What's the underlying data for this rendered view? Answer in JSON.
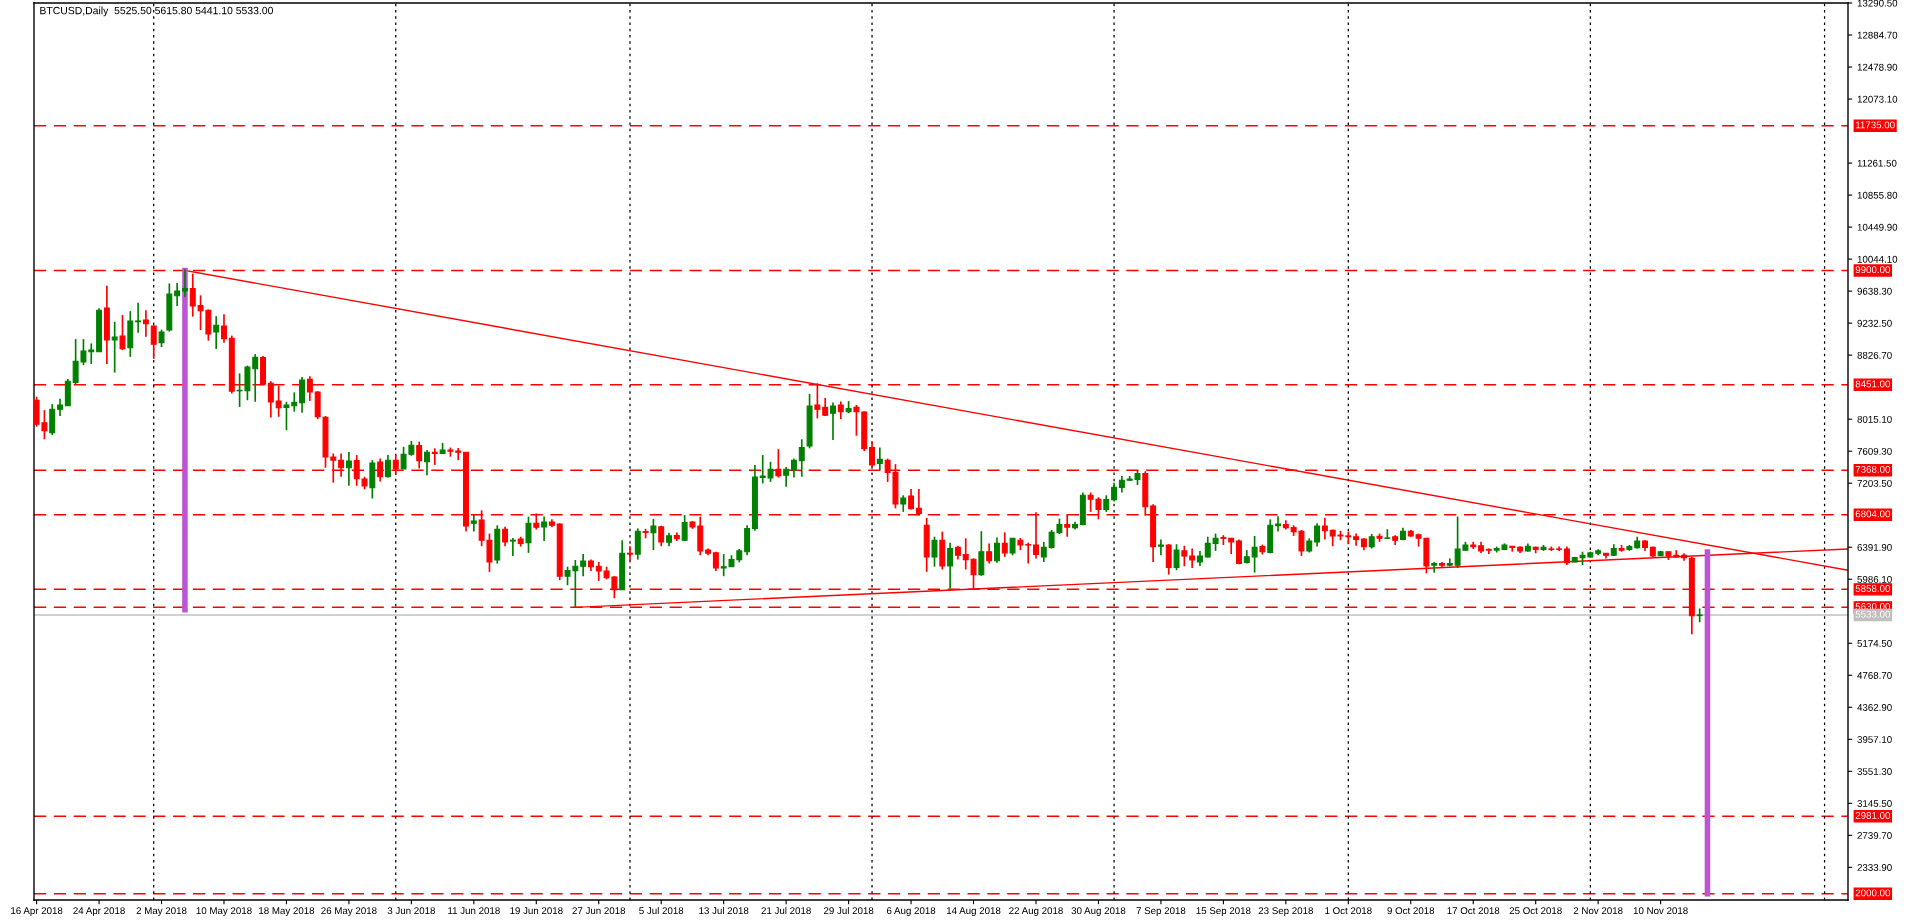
{
  "chart_data": {
    "type": "candlestick",
    "title": "BTCUSD,Daily  5525.50 5615.80 5441.10 5533.00",
    "colors": [
      "#ff0000",
      "#ff0000",
      "#008000",
      "#008000",
      "#008000",
      "#008000",
      "#008000",
      "#008000",
      "#008000",
      "#ff0000",
      "#008000",
      "#ff0000",
      "#008000",
      "#008000",
      "#ff0000",
      "#ff0000",
      "#008000",
      "#008000",
      "#008000",
      "#008000",
      "#ff0000",
      "#ff0000",
      "#ff0000",
      "#008000",
      "#ff0000",
      "#ff0000",
      "#008000",
      "#008000",
      "#008000",
      "#ff0000",
      "#ff0000",
      "#ff0000",
      "#008000",
      "#008000",
      "#008000",
      "#ff0000",
      "#ff0000",
      "#ff0000",
      "#ff0000",
      "#ff0000",
      "#008000",
      "#ff0000",
      "#ff0000",
      "#008000",
      "#ff0000",
      "#008000",
      "#ff0000",
      "#008000",
      "#008000",
      "#ff0000",
      "#008000",
      "#ff0000",
      "#008000",
      "#ff0000",
      "#ff0000",
      "#ff0000",
      "#008000",
      "#ff0000",
      "#ff0000",
      "#008000",
      "#ff0000",
      "#008000",
      "#ff0000",
      "#008000",
      "#ff0000",
      "#008000",
      "#ff0000",
      "#ff0000",
      "#008000",
      "#008000",
      "#008000",
      "#ff0000",
      "#ff0000",
      "#ff0000",
      "#ff0000",
      "#008000",
      "#ff0000",
      "#008000",
      "#ff0000",
      "#008000",
      "#ff0000",
      "#008000",
      "#ff0000",
      "#008000",
      "#ff0000",
      "#ff0000",
      "#ff0000",
      "#ff0000",
      "#008000",
      "#008000",
      "#008000",
      "#008000",
      "#008000",
      "#008000",
      "#008000",
      "#ff0000",
      "#008000",
      "#008000",
      "#008000",
      "#008000",
      "#ff0000",
      "#ff0000",
      "#008000",
      "#ff0000",
      "#008000",
      "#ff0000",
      "#ff0000",
      "#ff0000",
      "#008000",
      "#ff0000",
      "#ff0000",
      "#008000",
      "#ff0000",
      "#ff0000",
      "#ff0000",
      "#008000",
      "#ff0000",
      "#008000",
      "#ff0000",
      "#ff0000",
      "#ff0000",
      "#008000",
      "#ff0000",
      "#008000",
      "#ff0000",
      "#008000",
      "#ff0000",
      "#ff0000",
      "#ff0000",
      "#008000",
      "#008000",
      "#008000",
      "#ff0000",
      "#008000",
      "#008000",
      "#ff0000",
      "#ff0000",
      "#008000",
      "#008000",
      "#008000",
      "#008000",
      "#008000",
      "#ff0000",
      "#ff0000",
      "#008000",
      "#ff0000",
      "#008000",
      "#ff0000",
      "#ff0000",
      "#008000",
      "#008000",
      "#008000",
      "#ff0000",
      "#ff0000",
      "#ff0000",
      "#008000",
      "#008000",
      "#ff0000",
      "#008000",
      "#008000",
      "#ff0000",
      "#ff0000",
      "#ff0000",
      "#008000",
      "#008000",
      "#ff0000",
      "#ff0000",
      "#ff0000",
      "#ff0000",
      "#ff0000",
      "#ff0000",
      "#008000",
      "#ff0000",
      "#008000",
      "#ff0000",
      "#008000",
      "#ff0000",
      "#ff0000",
      "#ff0000",
      "#008000",
      "#ff0000",
      "#008000",
      "#008000",
      "#008000",
      "#ff0000",
      "#ff0000",
      "#ff0000",
      "#008000",
      "#008000",
      "#ff0000",
      "#ff0000",
      "#008000",
      "#ff0000",
      "#008000",
      "#ff0000",
      "#ff0000",
      "#ff0000",
      "#008000",
      "#008000",
      "#008000",
      "#008000",
      "#ff0000",
      "#008000",
      "#ff0000",
      "#008000",
      "#008000",
      "#ff0000",
      "#ff0000",
      "#008000",
      "#ff0000",
      "#ff0000",
      "#ff0000",
      "#ff0000",
      "#008000"
    ],
    "x": [
      "2018-04-16",
      "2018-04-17",
      "2018-04-18",
      "2018-04-19",
      "2018-04-20",
      "2018-04-21",
      "2018-04-22",
      "2018-04-23",
      "2018-04-24",
      "2018-04-25",
      "2018-04-26",
      "2018-04-27",
      "2018-04-28",
      "2018-04-29",
      "2018-04-30",
      "2018-05-01",
      "2018-05-02",
      "2018-05-03",
      "2018-05-04",
      "2018-05-05",
      "2018-05-06",
      "2018-05-07",
      "2018-05-08",
      "2018-05-09",
      "2018-05-10",
      "2018-05-11",
      "2018-05-12",
      "2018-05-13",
      "2018-05-14",
      "2018-05-15",
      "2018-05-16",
      "2018-05-17",
      "2018-05-18",
      "2018-05-19",
      "2018-05-20",
      "2018-05-21",
      "2018-05-22",
      "2018-05-23",
      "2018-05-24",
      "2018-05-25",
      "2018-05-26",
      "2018-05-27",
      "2018-05-28",
      "2018-05-29",
      "2018-05-30",
      "2018-05-31",
      "2018-06-01",
      "2018-06-02",
      "2018-06-03",
      "2018-06-04",
      "2018-06-05",
      "2018-06-06",
      "2018-06-07",
      "2018-06-08",
      "2018-06-09",
      "2018-06-10",
      "2018-06-11",
      "2018-06-12",
      "2018-06-13",
      "2018-06-14",
      "2018-06-15",
      "2018-06-16",
      "2018-06-17",
      "2018-06-18",
      "2018-06-19",
      "2018-06-20",
      "2018-06-21",
      "2018-06-22",
      "2018-06-23",
      "2018-06-24",
      "2018-06-25",
      "2018-06-26",
      "2018-06-27",
      "2018-06-28",
      "2018-06-29",
      "2018-06-30",
      "2018-07-01",
      "2018-07-02",
      "2018-07-03",
      "2018-07-04",
      "2018-07-05",
      "2018-07-06",
      "2018-07-07",
      "2018-07-08",
      "2018-07-09",
      "2018-07-10",
      "2018-07-11",
      "2018-07-12",
      "2018-07-13",
      "2018-07-14",
      "2018-07-15",
      "2018-07-16",
      "2018-07-17",
      "2018-07-18",
      "2018-07-19",
      "2018-07-20",
      "2018-07-21",
      "2018-07-22",
      "2018-07-23",
      "2018-07-24",
      "2018-07-25",
      "2018-07-26",
      "2018-07-27",
      "2018-07-28",
      "2018-07-29",
      "2018-07-30",
      "2018-07-31",
      "2018-08-01",
      "2018-08-02",
      "2018-08-03",
      "2018-08-04",
      "2018-08-05",
      "2018-08-06",
      "2018-08-07",
      "2018-08-08",
      "2018-08-09",
      "2018-08-10",
      "2018-08-11",
      "2018-08-12",
      "2018-08-13",
      "2018-08-14",
      "2018-08-15",
      "2018-08-16",
      "2018-08-17",
      "2018-08-18",
      "2018-08-19",
      "2018-08-20",
      "2018-08-21",
      "2018-08-22",
      "2018-08-23",
      "2018-08-24",
      "2018-08-25",
      "2018-08-26",
      "2018-08-27",
      "2018-08-28",
      "2018-08-29",
      "2018-08-30",
      "2018-08-31",
      "2018-09-01",
      "2018-09-02",
      "2018-09-03",
      "2018-09-04",
      "2018-09-05",
      "2018-09-06",
      "2018-09-07",
      "2018-09-08",
      "2018-09-09",
      "2018-09-10",
      "2018-09-11",
      "2018-09-12",
      "2018-09-13",
      "2018-09-14",
      "2018-09-15",
      "2018-09-16",
      "2018-09-17",
      "2018-09-18",
      "2018-09-19",
      "2018-09-20",
      "2018-09-21",
      "2018-09-22",
      "2018-09-23",
      "2018-09-24",
      "2018-09-25",
      "2018-09-26",
      "2018-09-27",
      "2018-09-28",
      "2018-09-29",
      "2018-09-30",
      "2018-10-01",
      "2018-10-02",
      "2018-10-03",
      "2018-10-04",
      "2018-10-05",
      "2018-10-06",
      "2018-10-07",
      "2018-10-08",
      "2018-10-09",
      "2018-10-10",
      "2018-10-11",
      "2018-10-12",
      "2018-10-13",
      "2018-10-14",
      "2018-10-15",
      "2018-10-16",
      "2018-10-17",
      "2018-10-18",
      "2018-10-19",
      "2018-10-20",
      "2018-10-21",
      "2018-10-22",
      "2018-10-23",
      "2018-10-24",
      "2018-10-25",
      "2018-10-26",
      "2018-10-27",
      "2018-10-28",
      "2018-10-29",
      "2018-10-30",
      "2018-10-31",
      "2018-11-01",
      "2018-11-02",
      "2018-11-03",
      "2018-11-04",
      "2018-11-05",
      "2018-11-06",
      "2018-11-07",
      "2018-11-08",
      "2018-11-09",
      "2018-11-10",
      "2018-11-11",
      "2018-11-12",
      "2018-11-13",
      "2018-11-14",
      "2018-11-15"
    ],
    "ohlc": [
      [
        8255,
        8300,
        7920,
        7950
      ],
      [
        7970,
        8130,
        7760,
        7870
      ],
      [
        7845,
        8205,
        7815,
        8140
      ],
      [
        8140,
        8275,
        8055,
        8195
      ],
      [
        8185,
        8525,
        8185,
        8495
      ],
      [
        8480,
        9030,
        8460,
        8750
      ],
      [
        8740,
        9030,
        8700,
        8880
      ],
      [
        8870,
        8975,
        8715,
        8890
      ],
      [
        8870,
        9420,
        8870,
        9395
      ],
      [
        9425,
        9705,
        8715,
        9020
      ],
      [
        9020,
        9250,
        8605,
        9055
      ],
      [
        9070,
        9335,
        8890,
        8910
      ],
      [
        8920,
        9385,
        8805,
        9260
      ],
      [
        9250,
        9490,
        9110,
        9260
      ],
      [
        9270,
        9395,
        9060,
        9225
      ],
      [
        9195,
        9205,
        8780,
        8965
      ],
      [
        8985,
        9150,
        8930,
        9120
      ],
      [
        9145,
        9735,
        9125,
        9600
      ],
      [
        9580,
        9740,
        9450,
        9640
      ],
      [
        9640,
        9915,
        9565,
        9670
      ],
      [
        9670,
        9860,
        9315,
        9450
      ],
      [
        9455,
        9585,
        9145,
        9390
      ],
      [
        9395,
        9405,
        9010,
        9095
      ],
      [
        9120,
        9320,
        8905,
        9205
      ],
      [
        9195,
        9345,
        8985,
        9035
      ],
      [
        9040,
        9075,
        8340,
        8370
      ],
      [
        8375,
        8595,
        8170,
        8380
      ],
      [
        8375,
        8695,
        8255,
        8675
      ],
      [
        8655,
        8840,
        8235,
        8800
      ],
      [
        8795,
        8815,
        8460,
        8460
      ],
      [
        8470,
        8495,
        8035,
        8235
      ],
      [
        8245,
        8440,
        8045,
        8160
      ],
      [
        8165,
        8235,
        7875,
        8195
      ],
      [
        8185,
        8355,
        8110,
        8230
      ],
      [
        8225,
        8550,
        8095,
        8510
      ],
      [
        8520,
        8560,
        8245,
        8360
      ],
      [
        8360,
        8370,
        8015,
        8045
      ],
      [
        8040,
        8055,
        7400,
        7535
      ],
      [
        7535,
        7580,
        7210,
        7495
      ],
      [
        7495,
        7580,
        7285,
        7400
      ],
      [
        7400,
        7600,
        7170,
        7485
      ],
      [
        7490,
        7560,
        7170,
        7260
      ],
      [
        7255,
        7285,
        7125,
        7170
      ],
      [
        7145,
        7495,
        7010,
        7460
      ],
      [
        7470,
        7515,
        7225,
        7285
      ],
      [
        7285,
        7560,
        7275,
        7495
      ],
      [
        7495,
        7560,
        7325,
        7385
      ],
      [
        7385,
        7665,
        7385,
        7570
      ],
      [
        7570,
        7740,
        7550,
        7685
      ],
      [
        7680,
        7730,
        7390,
        7490
      ],
      [
        7475,
        7625,
        7305,
        7595
      ],
      [
        7595,
        7645,
        7435,
        7580
      ],
      [
        7580,
        7715,
        7580,
        7625
      ],
      [
        7625,
        7655,
        7540,
        7610
      ],
      [
        7610,
        7650,
        7495,
        7595
      ],
      [
        7595,
        7595,
        6590,
        6660
      ],
      [
        6695,
        6800,
        6590,
        6725
      ],
      [
        6735,
        6860,
        6405,
        6480
      ],
      [
        6480,
        6565,
        6080,
        6205
      ],
      [
        6230,
        6670,
        6185,
        6620
      ],
      [
        6620,
        6650,
        6405,
        6460
      ],
      [
        6470,
        6510,
        6280,
        6480
      ],
      [
        6495,
        6525,
        6400,
        6440
      ],
      [
        6450,
        6780,
        6320,
        6695
      ],
      [
        6695,
        6820,
        6615,
        6645
      ],
      [
        6650,
        6780,
        6470,
        6710
      ],
      [
        6710,
        6745,
        6645,
        6670
      ],
      [
        6685,
        6695,
        5975,
        6025
      ],
      [
        6025,
        6145,
        5910,
        6095
      ],
      [
        6095,
        6230,
        5630,
        6150
      ],
      [
        6150,
        6305,
        6025,
        6215
      ],
      [
        6215,
        6235,
        6090,
        6145
      ],
      [
        6150,
        6205,
        5965,
        6090
      ],
      [
        6090,
        6145,
        5985,
        6005
      ],
      [
        6015,
        6025,
        5745,
        5855
      ],
      [
        5855,
        6480,
        5855,
        6315
      ],
      [
        6315,
        6405,
        6220,
        6305
      ],
      [
        6305,
        6630,
        6235,
        6595
      ],
      [
        6590,
        6625,
        6505,
        6580
      ],
      [
        6575,
        6750,
        6355,
        6660
      ],
      [
        6650,
        6665,
        6405,
        6460
      ],
      [
        6455,
        6575,
        6405,
        6535
      ],
      [
        6540,
        6580,
        6470,
        6500
      ],
      [
        6480,
        6800,
        6470,
        6705
      ],
      [
        6710,
        6725,
        6625,
        6650
      ],
      [
        6660,
        6780,
        6290,
        6345
      ],
      [
        6355,
        6375,
        6290,
        6315
      ],
      [
        6320,
        6335,
        6090,
        6130
      ],
      [
        6130,
        6305,
        6025,
        6145
      ],
      [
        6145,
        6290,
        6145,
        6235
      ],
      [
        6235,
        6370,
        6200,
        6345
      ],
      [
        6335,
        6670,
        6290,
        6630
      ],
      [
        6630,
        7435,
        6600,
        7280
      ],
      [
        7275,
        7560,
        7200,
        7295
      ],
      [
        7270,
        7475,
        7220,
        7380
      ],
      [
        7380,
        7635,
        7275,
        7300
      ],
      [
        7305,
        7410,
        7160,
        7380
      ],
      [
        7370,
        7515,
        7275,
        7495
      ],
      [
        7490,
        7760,
        7285,
        7655
      ],
      [
        7675,
        8335,
        7645,
        8180
      ],
      [
        8195,
        8470,
        8025,
        8140
      ],
      [
        8165,
        8285,
        8055,
        8065
      ],
      [
        8090,
        8225,
        7750,
        8180
      ],
      [
        8195,
        8240,
        8015,
        8110
      ],
      [
        8110,
        8245,
        8090,
        8150
      ],
      [
        8165,
        8195,
        7805,
        8110
      ],
      [
        8105,
        8115,
        7610,
        7640
      ],
      [
        7655,
        7730,
        7410,
        7435
      ],
      [
        7455,
        7655,
        7370,
        7505
      ],
      [
        7495,
        7515,
        7220,
        7340
      ],
      [
        7340,
        7445,
        6885,
        6940
      ],
      [
        6940,
        7050,
        6840,
        7015
      ],
      [
        7040,
        7130,
        6870,
        6880
      ],
      [
        6885,
        7130,
        6795,
        6820
      ],
      [
        6670,
        6765,
        6080,
        6270
      ],
      [
        6270,
        6525,
        6145,
        6480
      ],
      [
        6480,
        6590,
        6110,
        6155
      ],
      [
        6155,
        6450,
        5870,
        6375
      ],
      [
        6390,
        6410,
        6235,
        6290
      ],
      [
        6300,
        6505,
        6110,
        6235
      ],
      [
        6240,
        6250,
        5860,
        6045
      ],
      [
        6045,
        6595,
        6030,
        6335
      ],
      [
        6335,
        6440,
        6185,
        6220
      ],
      [
        6220,
        6515,
        6195,
        6440
      ],
      [
        6440,
        6580,
        6270,
        6320
      ],
      [
        6320,
        6510,
        6290,
        6505
      ],
      [
        6480,
        6510,
        6355,
        6420
      ],
      [
        6425,
        6450,
        6185,
        6420
      ],
      [
        6420,
        6835,
        6250,
        6300
      ],
      [
        6270,
        6460,
        6205,
        6390
      ],
      [
        6390,
        6610,
        6375,
        6580
      ],
      [
        6575,
        6755,
        6560,
        6680
      ],
      [
        6680,
        6810,
        6525,
        6645
      ],
      [
        6640,
        6715,
        6615,
        6680
      ],
      [
        6680,
        7085,
        6670,
        7050
      ],
      [
        7050,
        7085,
        6840,
        7000
      ],
      [
        7000,
        7025,
        6745,
        6870
      ],
      [
        6870,
        7050,
        6840,
        6995
      ],
      [
        6995,
        7210,
        6970,
        7150
      ],
      [
        7150,
        7295,
        7085,
        7240
      ],
      [
        7240,
        7295,
        7235,
        7255
      ],
      [
        7250,
        7360,
        7180,
        7325
      ],
      [
        7325,
        7355,
        6790,
        6905
      ],
      [
        6915,
        6935,
        6205,
        6400
      ],
      [
        6405,
        6490,
        6290,
        6420
      ],
      [
        6420,
        6430,
        6045,
        6135
      ],
      [
        6135,
        6430,
        6100,
        6355
      ],
      [
        6345,
        6410,
        6150,
        6280
      ],
      [
        6280,
        6375,
        6130,
        6230
      ],
      [
        6205,
        6345,
        6155,
        6280
      ],
      [
        6270,
        6525,
        6260,
        6440
      ],
      [
        6440,
        6565,
        6345,
        6505
      ],
      [
        6515,
        6545,
        6420,
        6505
      ],
      [
        6505,
        6510,
        6305,
        6460
      ],
      [
        6470,
        6490,
        6175,
        6185
      ],
      [
        6200,
        6355,
        6185,
        6270
      ],
      [
        6270,
        6535,
        6070,
        6390
      ],
      [
        6400,
        6425,
        6300,
        6335
      ],
      [
        6325,
        6745,
        6315,
        6670
      ],
      [
        6665,
        6785,
        6590,
        6685
      ],
      [
        6680,
        6735,
        6615,
        6640
      ],
      [
        6640,
        6670,
        6535,
        6590
      ],
      [
        6595,
        6610,
        6280,
        6345
      ],
      [
        6345,
        6505,
        6325,
        6470
      ],
      [
        6460,
        6695,
        6400,
        6660
      ],
      [
        6660,
        6765,
        6490,
        6600
      ],
      [
        6605,
        6615,
        6405,
        6535
      ],
      [
        6545,
        6600,
        6480,
        6535
      ],
      [
        6535,
        6590,
        6430,
        6525
      ],
      [
        6525,
        6565,
        6410,
        6490
      ],
      [
        6495,
        6505,
        6355,
        6400
      ],
      [
        6400,
        6560,
        6375,
        6525
      ],
      [
        6530,
        6565,
        6460,
        6505
      ],
      [
        6505,
        6620,
        6505,
        6510
      ],
      [
        6525,
        6545,
        6420,
        6480
      ],
      [
        6490,
        6640,
        6480,
        6595
      ],
      [
        6595,
        6610,
        6525,
        6535
      ],
      [
        6550,
        6565,
        6400,
        6505
      ],
      [
        6505,
        6510,
        6060,
        6155
      ],
      [
        6165,
        6205,
        6070,
        6185
      ],
      [
        6185,
        6205,
        6130,
        6165
      ],
      [
        6165,
        6250,
        6150,
        6185
      ],
      [
        6165,
        6780,
        6130,
        6370
      ],
      [
        6355,
        6460,
        6345,
        6420
      ],
      [
        6420,
        6460,
        6370,
        6400
      ],
      [
        6410,
        6460,
        6320,
        6345
      ],
      [
        6365,
        6375,
        6305,
        6355
      ],
      [
        6355,
        6400,
        6325,
        6375
      ],
      [
        6365,
        6440,
        6355,
        6420
      ],
      [
        6405,
        6405,
        6335,
        6390
      ],
      [
        6390,
        6405,
        6320,
        6345
      ],
      [
        6345,
        6440,
        6335,
        6405
      ],
      [
        6390,
        6400,
        6315,
        6365
      ],
      [
        6365,
        6420,
        6345,
        6390
      ],
      [
        6370,
        6400,
        6345,
        6365
      ],
      [
        6370,
        6400,
        6345,
        6365
      ],
      [
        6370,
        6400,
        6165,
        6195
      ],
      [
        6205,
        6270,
        6200,
        6260
      ],
      [
        6260,
        6335,
        6165,
        6290
      ],
      [
        6270,
        6335,
        6260,
        6320
      ],
      [
        6315,
        6365,
        6290,
        6345
      ],
      [
        6315,
        6315,
        6250,
        6290
      ],
      [
        6290,
        6430,
        6280,
        6375
      ],
      [
        6375,
        6420,
        6335,
        6355
      ],
      [
        6365,
        6420,
        6345,
        6400
      ],
      [
        6385,
        6525,
        6375,
        6470
      ],
      [
        6470,
        6480,
        6345,
        6390
      ],
      [
        6390,
        6400,
        6270,
        6280
      ],
      [
        6285,
        6345,
        6280,
        6335
      ],
      [
        6335,
        6335,
        6230,
        6280
      ],
      [
        6290,
        6355,
        6260,
        6270
      ],
      [
        6290,
        6315,
        6220,
        6260
      ],
      [
        6250,
        6270,
        5290,
        5525
      ],
      [
        5525.5,
        5615.8,
        5441.1,
        5533
      ]
    ],
    "series": [
      {
        "type": "line",
        "color": "#ff0000",
        "x": [
          "2018-05-05",
          "2018-12-04"
        ],
        "values": [
          9900,
          6100
        ]
      },
      {
        "type": "line",
        "color": "#ff0000",
        "x": [
          "2018-06-24",
          "2018-12-04"
        ],
        "values": [
          5630,
          6370
        ]
      },
      {
        "type": "line",
        "color": "#bb55d3",
        "x": [
          "2018-05-05",
          "2018-05-05"
        ],
        "values": [
          9900,
          5600
        ]
      },
      {
        "type": "line",
        "color": "#bb55d3",
        "x": [
          "2018-11-16",
          "2018-11-16"
        ],
        "values": [
          6330,
          2000
        ]
      }
    ],
    "ref_lines": [
      {
        "axis": "y",
        "value": 11735,
        "label": "11735.00",
        "color": "#ff0000",
        "line_style": "dashed"
      },
      {
        "axis": "y",
        "value": 9900,
        "label": "9900.00",
        "color": "#ff0000",
        "line_style": "dashed"
      },
      {
        "axis": "y",
        "value": 8451,
        "label": "8451.00",
        "color": "#ff0000",
        "line_style": "dashed"
      },
      {
        "axis": "y",
        "value": 7368,
        "label": "7368.00",
        "color": "#ff0000",
        "line_style": "dashed"
      },
      {
        "axis": "y",
        "value": 6804,
        "label": "6804.00",
        "color": "#ff0000",
        "line_style": "dashed"
      },
      {
        "axis": "y",
        "value": 5858,
        "label": "5858.00",
        "color": "#ff0000",
        "line_style": "dashed"
      },
      {
        "axis": "y",
        "value": 5630,
        "label": "5630.00",
        "color": "#ff0000",
        "line_style": "dashed"
      },
      {
        "axis": "y",
        "value": 5533,
        "label": "5533.00",
        "color": "#c0c0c0",
        "line_style": "solid"
      },
      {
        "axis": "y",
        "value": 2981,
        "label": "2981.00",
        "color": "#ff0000",
        "line_style": "dashed"
      },
      {
        "axis": "y",
        "value": 2000,
        "label": "2000.00",
        "color": "#ff0000",
        "line_style": "dashed"
      },
      {
        "axis": "x",
        "value": "2018-05-01",
        "color": "#000000",
        "line_style": "dotted"
      },
      {
        "axis": "x",
        "value": "2018-06-01",
        "color": "#000000",
        "line_style": "dotted"
      },
      {
        "axis": "x",
        "value": "2018-07-01",
        "color": "#000000",
        "line_style": "dotted"
      },
      {
        "axis": "x",
        "value": "2018-08-01",
        "color": "#000000",
        "line_style": "dotted"
      },
      {
        "axis": "x",
        "value": "2018-09-01",
        "color": "#000000",
        "line_style": "dotted"
      },
      {
        "axis": "x",
        "value": "2018-10-01",
        "color": "#000000",
        "line_style": "dotted"
      },
      {
        "axis": "x",
        "value": "2018-11-01",
        "color": "#000000",
        "line_style": "dotted"
      },
      {
        "axis": "x",
        "value": "2018-12-01",
        "color": "#000000",
        "line_style": "dotted"
      }
    ],
    "xlim": [
      "2018-04-15T16:00",
      "2018-12-04"
    ],
    "xticks": [
      {
        "value": "2018-04-16",
        "label": "16 Apr 2018"
      },
      {
        "value": "2018-04-24",
        "label": "24 Apr 2018"
      },
      {
        "value": "2018-05-02",
        "label": "2 May 2018"
      },
      {
        "value": "2018-05-10",
        "label": "10 May 2018"
      },
      {
        "value": "2018-05-18",
        "label": "18 May 2018"
      },
      {
        "value": "2018-05-26",
        "label": "26 May 2018"
      },
      {
        "value": "2018-06-03",
        "label": "3 Jun 2018"
      },
      {
        "value": "2018-06-11",
        "label": "11 Jun 2018"
      },
      {
        "value": "2018-06-19",
        "label": "19 Jun 2018"
      },
      {
        "value": "2018-06-27",
        "label": "27 Jun 2018"
      },
      {
        "value": "2018-07-05",
        "label": "5 Jul 2018"
      },
      {
        "value": "2018-07-13",
        "label": "13 Jul 2018"
      },
      {
        "value": "2018-07-21",
        "label": "21 Jul 2018"
      },
      {
        "value": "2018-07-29",
        "label": "29 Jul 2018"
      },
      {
        "value": "2018-08-06",
        "label": "6 Aug 2018"
      },
      {
        "value": "2018-08-14",
        "label": "14 Aug 2018"
      },
      {
        "value": "2018-08-22",
        "label": "22 Aug 2018"
      },
      {
        "value": "2018-08-30",
        "label": "30 Aug 2018"
      },
      {
        "value": "2018-09-07",
        "label": "7 Sep 2018"
      },
      {
        "value": "2018-09-15",
        "label": "15 Sep 2018"
      },
      {
        "value": "2018-09-23",
        "label": "23 Sep 2018"
      },
      {
        "value": "2018-10-01",
        "label": "1 Oct 2018"
      },
      {
        "value": "2018-10-09",
        "label": "9 Oct 2018"
      },
      {
        "value": "2018-10-17",
        "label": "17 Oct 2018"
      },
      {
        "value": "2018-10-25",
        "label": "25 Oct 2018"
      },
      {
        "value": "2018-11-02",
        "label": "2 Nov 2018"
      },
      {
        "value": "2018-11-10",
        "label": "10 Nov 2018"
      }
    ],
    "ylim": [
      1920,
      13290.5
    ],
    "yticks": [
      {
        "value": 13290.5,
        "label": "13290.50"
      },
      {
        "value": 12884.7,
        "label": "12884.70"
      },
      {
        "value": 12478.9,
        "label": "12478.90"
      },
      {
        "value": 12073.1,
        "label": "12073.10"
      },
      {
        "value": 11261.5,
        "label": "11261.50"
      },
      {
        "value": 10855.8,
        "label": "10855.80"
      },
      {
        "value": 10449.9,
        "label": "10449.90"
      },
      {
        "value": 10044.1,
        "label": "10044.10"
      },
      {
        "value": 9638.3,
        "label": "9638.30"
      },
      {
        "value": 9232.5,
        "label": "9232.50"
      },
      {
        "value": 8826.7,
        "label": "8826.70"
      },
      {
        "value": 8015.1,
        "label": "8015.10"
      },
      {
        "value": 7609.3,
        "label": "7609.30"
      },
      {
        "value": 7203.5,
        "label": "7203.50"
      },
      {
        "value": 6391.9,
        "label": "6391.90"
      },
      {
        "value": 5986.1,
        "label": "5986.10"
      },
      {
        "value": 5174.5,
        "label": "5174.50"
      },
      {
        "value": 4768.7,
        "label": "4768.70"
      },
      {
        "value": 4362.9,
        "label": "4362.90"
      },
      {
        "value": 3957.1,
        "label": "3957.10"
      },
      {
        "value": 3551.3,
        "label": "3551.30"
      },
      {
        "value": 3145.5,
        "label": "3145.50"
      },
      {
        "value": 2739.7,
        "label": "2739.70"
      },
      {
        "value": 2333.9,
        "label": "2333.90"
      }
    ]
  }
}
